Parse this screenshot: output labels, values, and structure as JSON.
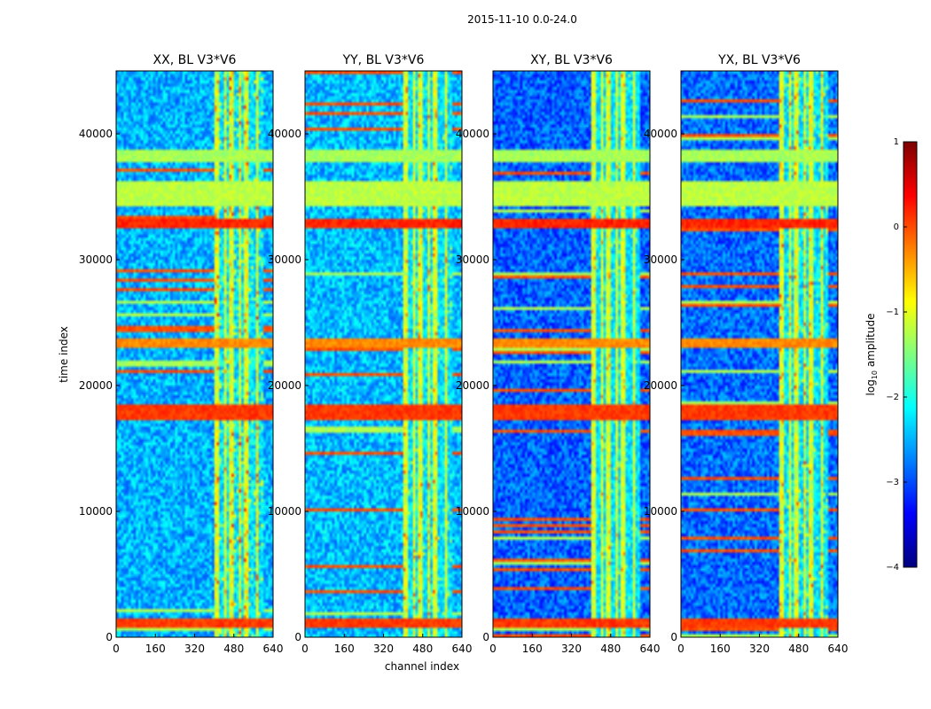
{
  "chart_data": {
    "type": "heatmap",
    "title": "2015-11-10 0.0-24.0",
    "xlabel": "channel index",
    "ylabel": "time index",
    "xlim": [
      0,
      640
    ],
    "ylim": [
      0,
      45000
    ],
    "x_ticks": [
      "0",
      "160",
      "320",
      "480",
      "640"
    ],
    "x_tick_values": [
      0,
      160,
      320,
      480,
      640
    ],
    "y_ticks": [
      "0",
      "10000",
      "20000",
      "30000",
      "40000"
    ],
    "y_tick_values": [
      0,
      10000,
      20000,
      30000,
      40000
    ],
    "panels": [
      {
        "title": "XX, BL V3*V6",
        "base": -2.5,
        "rfi_strength": 1.0
      },
      {
        "title": "YY, BL V3*V6",
        "base": -2.45,
        "rfi_strength": 0.85
      },
      {
        "title": "XY, BL V3*V6",
        "base": -2.9,
        "rfi_strength": 0.7
      },
      {
        "title": "YX, BL V3*V6",
        "base": -2.85,
        "rfi_strength": 0.9
      }
    ],
    "rfi_channel_band": [
      405,
      600
    ],
    "rfi_channel_lines": [
      395,
      430,
      455,
      490,
      515,
      545,
      560,
      590
    ],
    "rfi_time_bands": [
      {
        "t0": 700,
        "t1": 1400,
        "level": 0.1
      },
      {
        "t0": 17200,
        "t1": 18500,
        "level": 0.1
      },
      {
        "t0": 23000,
        "t1": 23800,
        "level": -0.3
      },
      {
        "t0": 32600,
        "t1": 33300,
        "level": 0.2
      },
      {
        "t0": 34300,
        "t1": 36200,
        "level": -1.2
      },
      {
        "t0": 37700,
        "t1": 38800,
        "level": -1.3
      }
    ],
    "colorbar": {
      "label": "log10 amplitude",
      "label_main": "log",
      "label_sub": "10",
      "label_rest": " amplitude",
      "range": [
        -4,
        1
      ],
      "ticks": [
        "1",
        "0",
        "−1",
        "−2",
        "−3",
        "−4"
      ],
      "tick_values": [
        1,
        0,
        -1,
        -2,
        -3,
        -4
      ],
      "colormap": "jet"
    }
  }
}
